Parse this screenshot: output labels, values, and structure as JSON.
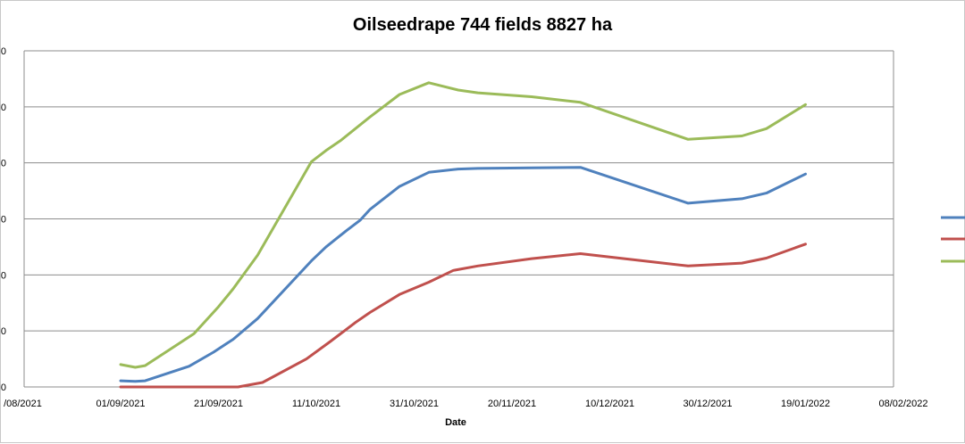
{
  "chart_data": {
    "type": "line",
    "title": "Oilseedrape 744 fields 8827 ha",
    "xlabel": "Date",
    "ylabel": "",
    "x_ticks": [
      "/08/2021",
      "01/09/2021",
      "21/09/2021",
      "11/10/2021",
      "31/10/2021",
      "20/11/2021",
      "10/12/2021",
      "30/12/2021",
      "19/01/2022",
      "08/02/2022"
    ],
    "y_ticks": [
      "0",
      "0",
      "0",
      "0",
      "0",
      "0",
      "0"
    ],
    "grid": true,
    "legend_position": "right",
    "series": [
      {
        "color": "#4f81bd",
        "points": [
          [
            "01/09/2021",
            0.11
          ],
          [
            "04/09/2021",
            0.1
          ],
          [
            "06/09/2021",
            0.11
          ],
          [
            "15/09/2021",
            0.37
          ],
          [
            "20/09/2021",
            0.62
          ],
          [
            "24/09/2021",
            0.85
          ],
          [
            "29/09/2021",
            1.22
          ],
          [
            "10/10/2021",
            2.25
          ],
          [
            "13/10/2021",
            2.5
          ],
          [
            "17/10/2021",
            2.78
          ],
          [
            "20/10/2021",
            2.98
          ],
          [
            "22/10/2021",
            3.17
          ],
          [
            "28/10/2021",
            3.58
          ],
          [
            "03/11/2021",
            3.83
          ],
          [
            "09/11/2021",
            3.89
          ],
          [
            "13/11/2021",
            3.9
          ],
          [
            "24/11/2021",
            3.91
          ],
          [
            "04/12/2021",
            3.92
          ],
          [
            "26/12/2021",
            3.28
          ],
          [
            "06/01/2022",
            3.36
          ],
          [
            "11/01/2022",
            3.46
          ],
          [
            "19/01/2022",
            3.8
          ]
        ]
      },
      {
        "color": "#c0504d",
        "points": [
          [
            "01/09/2021",
            0.0
          ],
          [
            "10/09/2021",
            0.0
          ],
          [
            "20/09/2021",
            0.0
          ],
          [
            "25/09/2021",
            0.0
          ],
          [
            "30/09/2021",
            0.08
          ],
          [
            "09/10/2021",
            0.5
          ],
          [
            "14/10/2021",
            0.82
          ],
          [
            "19/10/2021",
            1.15
          ],
          [
            "22/10/2021",
            1.33
          ],
          [
            "28/10/2021",
            1.65
          ],
          [
            "03/11/2021",
            1.87
          ],
          [
            "08/11/2021",
            2.08
          ],
          [
            "13/11/2021",
            2.16
          ],
          [
            "24/11/2021",
            2.29
          ],
          [
            "04/12/2021",
            2.38
          ],
          [
            "26/12/2021",
            2.16
          ],
          [
            "06/01/2022",
            2.21
          ],
          [
            "11/01/2022",
            2.3
          ],
          [
            "19/01/2022",
            2.55
          ]
        ]
      },
      {
        "color": "#9bbb59",
        "points": [
          [
            "01/09/2021",
            0.4
          ],
          [
            "04/09/2021",
            0.35
          ],
          [
            "06/09/2021",
            0.38
          ],
          [
            "16/09/2021",
            0.95
          ],
          [
            "21/09/2021",
            1.43
          ],
          [
            "24/09/2021",
            1.75
          ],
          [
            "29/09/2021",
            2.35
          ],
          [
            "10/10/2021",
            4.02
          ],
          [
            "13/10/2021",
            4.22
          ],
          [
            "16/10/2021",
            4.4
          ],
          [
            "22/10/2021",
            4.82
          ],
          [
            "28/10/2021",
            5.22
          ],
          [
            "03/11/2021",
            5.43
          ],
          [
            "09/11/2021",
            5.3
          ],
          [
            "13/11/2021",
            5.25
          ],
          [
            "24/11/2021",
            5.18
          ],
          [
            "04/12/2021",
            5.08
          ],
          [
            "26/12/2021",
            4.42
          ],
          [
            "06/01/2022",
            4.48
          ],
          [
            "11/01/2022",
            4.61
          ],
          [
            "19/01/2022",
            5.04
          ]
        ]
      }
    ]
  }
}
